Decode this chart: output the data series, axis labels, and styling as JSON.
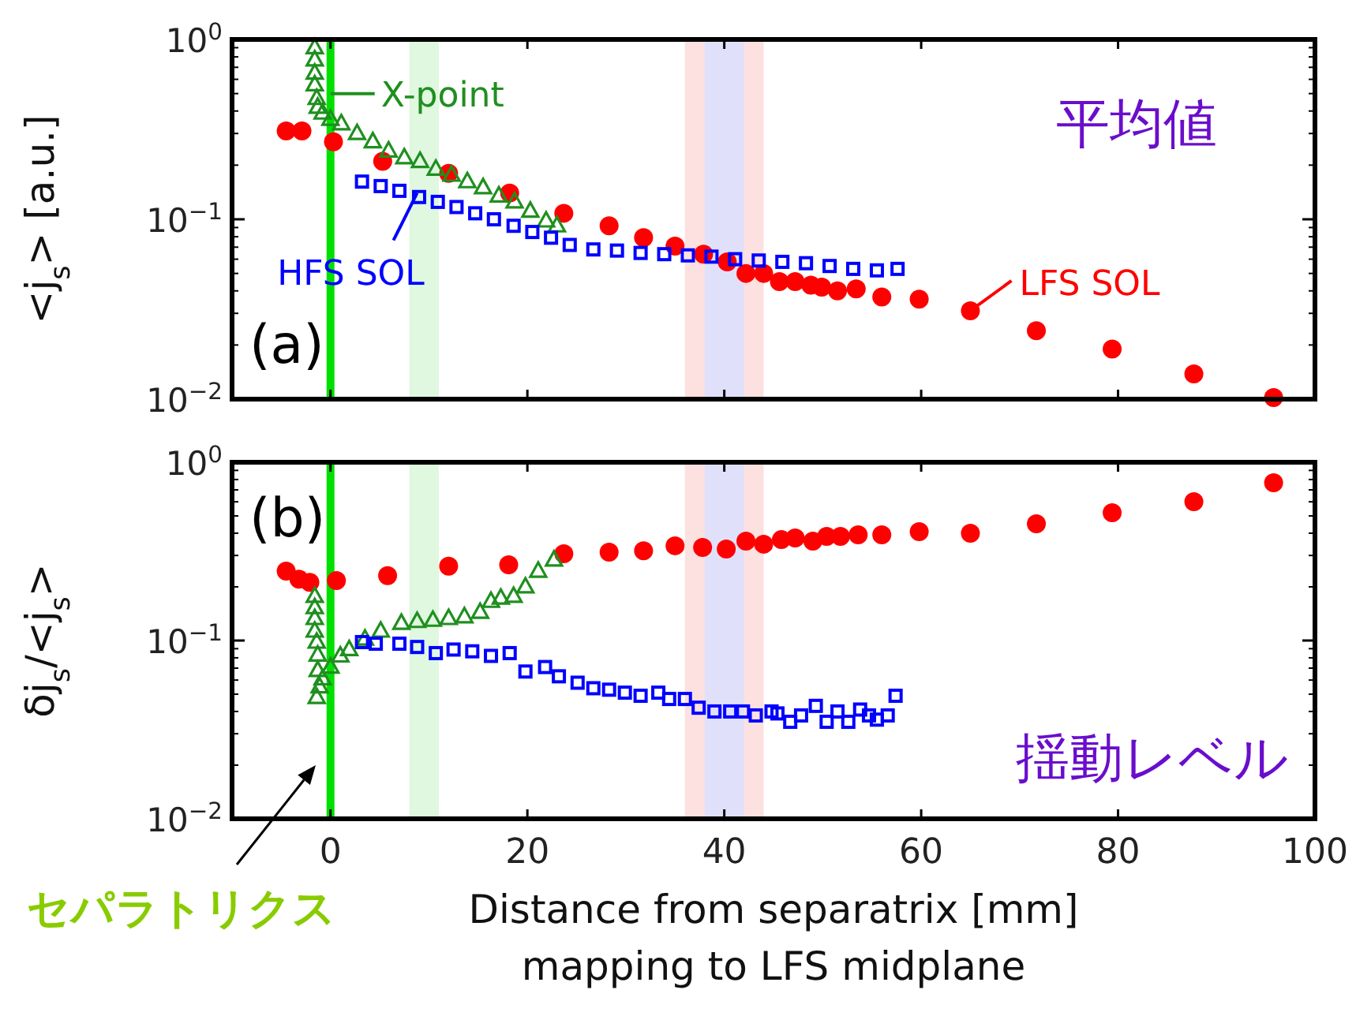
{
  "chart_data": [
    {
      "type": "scatter",
      "ylabel": "<j$_{s}$> [a.u.]",
      "log": "y",
      "xlim": [
        -10,
        100
      ],
      "xticks": [
        0,
        20,
        40,
        60,
        80,
        100
      ],
      "ylim": [
        0.01,
        1
      ],
      "yticks": [
        {
          "value": 0.01,
          "label": "10$^{−2}$"
        },
        {
          "value": 0.1,
          "label": "10$^{−1}$"
        },
        {
          "value": 1,
          "label": "10$^{0}$"
        }
      ],
      "tick_labels": "y",
      "grid": false,
      "series": [
        {
          "color": "#ff0000",
          "marker": "circle",
          "x": [
            -4.5,
            -2.9,
            0.3,
            5.3,
            12,
            18.2,
            23.7,
            28.3,
            31.8,
            35,
            37.9,
            40.3,
            42.2,
            44,
            45.6,
            47.2,
            48.8,
            49.9,
            51.5,
            53.4,
            56,
            59.8,
            65,
            71.7,
            79.4,
            87.7,
            95.8
          ],
          "values": [
            0.31,
            0.31,
            0.27,
            0.21,
            0.18,
            0.14,
            0.108,
            0.092,
            0.079,
            0.071,
            0.064,
            0.058,
            0.05,
            0.05,
            0.045,
            0.045,
            0.043,
            0.042,
            0.04,
            0.041,
            0.037,
            0.036,
            0.031,
            0.024,
            0.019,
            0.0138,
            0.0102
          ]
        },
        {
          "color": "#1f8f1f",
          "marker": "triangle",
          "x": [
            -1.6,
            -1.6,
            -1.6,
            -1.6,
            -1.4,
            -1.3,
            -0.8,
            0,
            1.1,
            2.7,
            4.3,
            5.9,
            7.5,
            9.1,
            10.7,
            12.3,
            13.9,
            15.5,
            17.1,
            18.7,
            20.3,
            21.9,
            23.0
          ],
          "values": [
            0.9,
            0.77,
            0.65,
            0.56,
            0.47,
            0.42,
            0.39,
            0.36,
            0.34,
            0.3,
            0.27,
            0.24,
            0.22,
            0.21,
            0.19,
            0.176,
            0.162,
            0.15,
            0.135,
            0.125,
            0.111,
            0.098,
            0.092
          ]
        },
        {
          "color": "#0000ff",
          "marker": "square",
          "x": [
            3.2,
            5.1,
            7.0,
            9.0,
            10.9,
            12.8,
            14.7,
            16.6,
            18.6,
            20.5,
            22.4,
            24.3,
            26.7,
            29.1,
            31.5,
            33.9,
            36.3,
            38.7,
            41.1,
            43.5,
            45.9,
            48.3,
            50.7,
            53.1,
            55.5,
            57.6
          ],
          "values": [
            0.162,
            0.153,
            0.144,
            0.133,
            0.125,
            0.117,
            0.108,
            0.1,
            0.092,
            0.085,
            0.079,
            0.072,
            0.068,
            0.067,
            0.065,
            0.064,
            0.063,
            0.062,
            0.06,
            0.059,
            0.058,
            0.057,
            0.055,
            0.053,
            0.052,
            0.053
          ]
        }
      ],
      "ref_lines": [
        {
          "axis": "x",
          "value": 0,
          "color": "#00e000"
        }
      ],
      "bands": [
        {
          "axis": "x",
          "from": 8,
          "to": 11,
          "color": "#dff8df"
        },
        {
          "axis": "x",
          "from": 36,
          "to": 44,
          "color": "#fde0e0"
        },
        {
          "axis": "x",
          "from": 38,
          "to": 42,
          "color": "#e0e0fb"
        }
      ],
      "annotations": [
        "(a)",
        "平均値",
        {
          "text": "X-point",
          "x": 0,
          "y": 0.5
        },
        {
          "text": "HFS SOL",
          "x": 8.8,
          "y": 0.14
        },
        {
          "text": "LFS SOL",
          "x": 65,
          "y": 0.031
        }
      ]
    },
    {
      "type": "scatter",
      "ylabel": "δj$_{s}$/<j$_{s}$>",
      "xlabel": "Distance from separatrix [mm]\nmapping to LFS midplane",
      "log": "y",
      "xlim": [
        -10,
        100
      ],
      "xticks": [
        0,
        20,
        40,
        60,
        80,
        100
      ],
      "ylim": [
        0.01,
        1
      ],
      "yticks": [
        {
          "value": 0.01,
          "label": "10$^{−2}$"
        },
        {
          "value": 0.1,
          "label": "10$^{−1}$"
        },
        {
          "value": 1,
          "label": "10$^{0}$"
        }
      ],
      "grid": false,
      "series": [
        {
          "color": "#ff0000",
          "marker": "circle",
          "x": [
            -4.5,
            -3.2,
            -2.1,
            0.6,
            5.8,
            12.0,
            18.1,
            23.7,
            28.3,
            31.8,
            35.0,
            37.8,
            40.2,
            42.2,
            44.0,
            45.8,
            47.2,
            49.0,
            50.4,
            51.8,
            53.6,
            56.0,
            59.8,
            65.0,
            71.7,
            79.4,
            87.7,
            95.8
          ],
          "values": [
            0.245,
            0.221,
            0.212,
            0.217,
            0.231,
            0.261,
            0.266,
            0.307,
            0.313,
            0.319,
            0.34,
            0.333,
            0.326,
            0.361,
            0.347,
            0.368,
            0.376,
            0.361,
            0.384,
            0.384,
            0.392,
            0.392,
            0.408,
            0.4,
            0.452,
            0.521,
            0.601,
            0.767
          ]
        },
        {
          "color": "#1f8f1f",
          "marker": "triangle",
          "x": [
            -1.6,
            -1.6,
            -1.6,
            -1.6,
            -1.4,
            -1.3,
            -1.3,
            -1.1,
            -1.4,
            -0.8,
            0,
            1.0,
            1.9,
            3.5,
            5.1,
            7.2,
            8.8,
            10.4,
            12.0,
            13.6,
            15.2,
            16.3,
            17.3,
            18.6,
            19.8,
            21.1,
            22.7
          ],
          "values": [
            0.177,
            0.153,
            0.133,
            0.113,
            0.098,
            0.083,
            0.068,
            0.055,
            0.048,
            0.061,
            0.071,
            0.082,
            0.089,
            0.102,
            0.113,
            0.125,
            0.128,
            0.13,
            0.133,
            0.136,
            0.144,
            0.166,
            0.173,
            0.177,
            0.2,
            0.245,
            0.283
          ]
        },
        {
          "color": "#0000ff",
          "marker": "square",
          "x": [
            3.2,
            4.6,
            7.0,
            8.8,
            10.7,
            12.5,
            14.4,
            16.3,
            18.2,
            19.8,
            21.8,
            23.2,
            25.1,
            26.7,
            28.3,
            29.9,
            31.5,
            33.3,
            34.4,
            36.0,
            37.4,
            39.0,
            40.6,
            41.9,
            43.2,
            44.8,
            45.4,
            46.7,
            47.8,
            49.3,
            50.4,
            51.5,
            52.6,
            53.8,
            54.7,
            55.5,
            56.6,
            57.4
          ],
          "values": [
            0.098,
            0.096,
            0.096,
            0.092,
            0.085,
            0.089,
            0.087,
            0.082,
            0.085,
            0.067,
            0.071,
            0.063,
            0.058,
            0.054,
            0.053,
            0.051,
            0.049,
            0.051,
            0.047,
            0.047,
            0.042,
            0.04,
            0.04,
            0.04,
            0.038,
            0.04,
            0.039,
            0.035,
            0.038,
            0.043,
            0.035,
            0.04,
            0.035,
            0.041,
            0.038,
            0.036,
            0.038,
            0.049
          ]
        }
      ],
      "ref_lines": [
        {
          "axis": "x",
          "value": 0,
          "color": "#00e000"
        }
      ],
      "bands": [
        {
          "axis": "x",
          "from": 8,
          "to": 11,
          "color": "#dff8df"
        },
        {
          "axis": "x",
          "from": 36,
          "to": 44,
          "color": "#fde0e0"
        },
        {
          "axis": "x",
          "from": 38,
          "to": 42,
          "color": "#e0e0fb"
        }
      ],
      "annotations": [
        "(b)",
        "揺動レベル",
        "セパラトリクス"
      ]
    }
  ]
}
